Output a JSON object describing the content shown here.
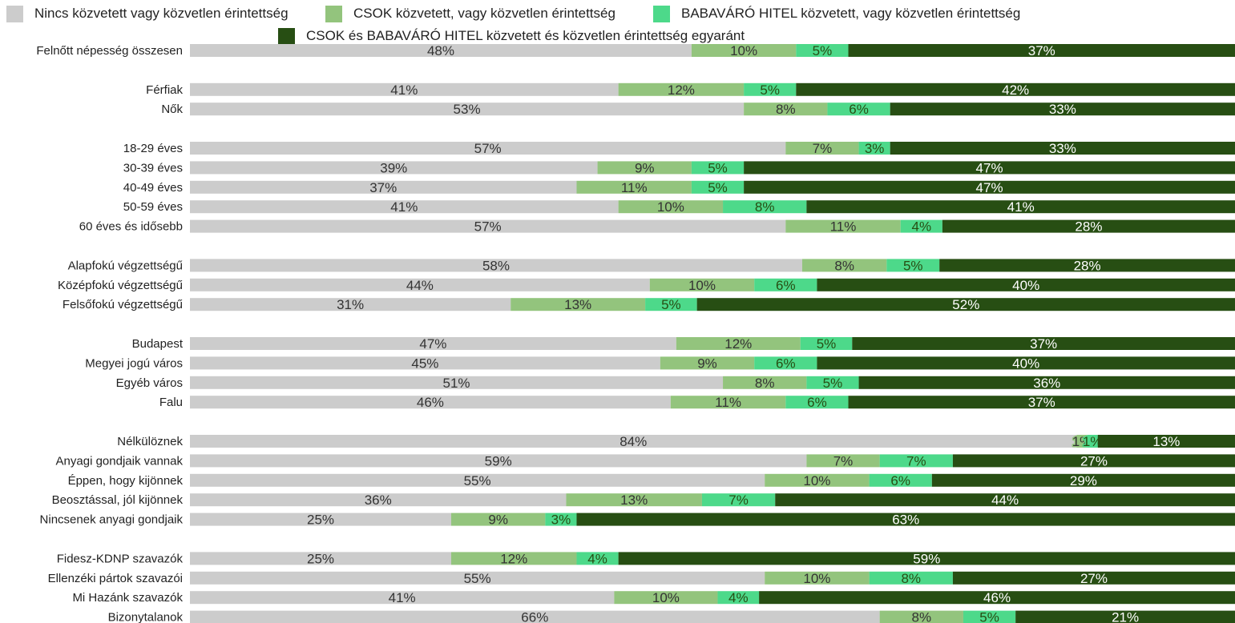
{
  "chart_data": {
    "type": "bar",
    "orientation": "horizontal",
    "stacked": true,
    "xlim": [
      0,
      100
    ],
    "legend_position": "top",
    "series": [
      {
        "name": "Nincs közvetett vagy közvetlen érintettség",
        "color": "#cccccc",
        "values": [
          48,
          41,
          53,
          57,
          39,
          37,
          41,
          57,
          58,
          44,
          31,
          47,
          45,
          51,
          46,
          84,
          59,
          55,
          36,
          25,
          25,
          55,
          41,
          66
        ]
      },
      {
        "name": "CSOK közvetett, vagy közvetlen érintettség",
        "color": "#93c47d",
        "values": [
          10,
          12,
          8,
          7,
          9,
          11,
          10,
          11,
          8,
          10,
          13,
          12,
          9,
          8,
          11,
          1,
          7,
          10,
          13,
          9,
          12,
          10,
          10,
          8
        ]
      },
      {
        "name": "BABAVÁRÓ HITEL közvetett, vagy közvetlen érintettség",
        "color": "#4dd98a",
        "values": [
          5,
          5,
          6,
          3,
          5,
          5,
          8,
          4,
          5,
          6,
          5,
          5,
          6,
          5,
          6,
          1,
          7,
          6,
          7,
          3,
          4,
          8,
          4,
          5
        ]
      },
      {
        "name": "CSOK és BABAVÁRÓ HITEL közvetett és közvetlen érintettség egyaránt",
        "color": "#274e13",
        "values": [
          37,
          42,
          33,
          33,
          47,
          47,
          41,
          28,
          28,
          40,
          52,
          37,
          40,
          36,
          37,
          13,
          27,
          29,
          44,
          63,
          59,
          27,
          46,
          21
        ]
      }
    ],
    "categories": [
      "Felnőtt népesség összesen",
      "Férfiak",
      "Nők",
      "18-29 éves",
      "30-39 éves",
      "40-49 éves",
      "50-59 éves",
      "60 éves és idősebb",
      "Alapfokú végzettségű",
      "Középfokú végzettségű",
      "Felsőfokú végzettségű",
      "Budapest",
      "Megyei jogú város",
      "Egyéb város",
      "Falu",
      "Nélkülöznek",
      "Anyagi gondjaik vannak",
      "Éppen, hogy kijönnek",
      "Beosztással, jól kijönnek",
      "Nincsenek anyagi gondjaik",
      "Fidesz-KDNP szavazók",
      "Ellenzéki pártok szavazói",
      "Mi Hazánk szavazók",
      "Bizonytalanok"
    ],
    "groups": [
      1,
      2,
      5,
      3,
      4,
      5,
      4
    ]
  }
}
